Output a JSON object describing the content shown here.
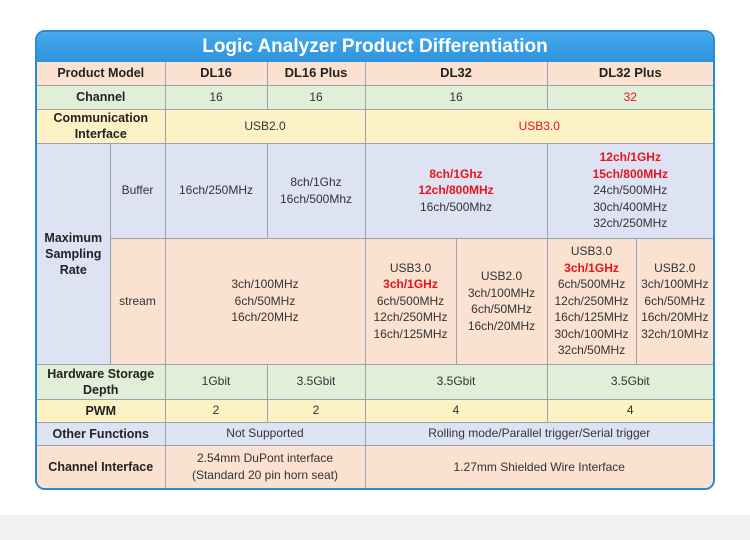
{
  "title": "Logic Analyzer Product Differentiation",
  "header": {
    "label": "Product Model",
    "models": [
      "DL16",
      "DL16 Plus",
      "DL32",
      "DL32 Plus"
    ]
  },
  "channel": {
    "label": "Channel",
    "values": [
      16,
      16,
      16,
      32
    ]
  },
  "communication": {
    "label": "Communication Interface",
    "values": [
      "USB2.0",
      "USB3.0"
    ]
  },
  "sampling": {
    "label": "Maximum Sampling Rate",
    "buffer": {
      "label": "Buffer",
      "cells": [
        [
          "16ch/250MHz"
        ],
        [
          "8ch/1Ghz",
          "16ch/500Mhz"
        ],
        [
          "8ch/1Ghz",
          "12ch/800MHz",
          "16ch/500Mhz"
        ],
        [
          "12ch/1GHz",
          "15ch/800MHz",
          "24ch/500MHz",
          "30ch/400MHz",
          "32ch/250MHz"
        ]
      ]
    },
    "stream": {
      "label": "stream",
      "cells": [
        [
          "3ch/100MHz",
          "6ch/50MHz",
          "16ch/20MHz"
        ],
        [
          "USB3.0",
          "3ch/1GHz",
          "6ch/500MHz",
          "12ch/250MHz",
          "16ch/125MHz"
        ],
        [
          "USB2.0",
          "3ch/100MHz",
          "6ch/50MHz",
          "16ch/20MHz"
        ],
        [
          "USB3.0",
          "3ch/1GHz",
          "6ch/500MHz",
          "12ch/250MHz",
          "16ch/125MHz",
          "30ch/100MHz",
          "32ch/50MHz"
        ],
        [
          "USB2.0",
          "3ch/100MHz",
          "6ch/50MHz",
          "16ch/20MHz",
          "32ch/10MHz"
        ]
      ]
    }
  },
  "storage": {
    "label": "Hardware Storage Depth",
    "values": [
      "1Gbit",
      "3.5Gbit",
      "3.5Gbit",
      "3.5Gbit"
    ]
  },
  "pwm": {
    "label": "PWM",
    "values": [
      2,
      2,
      4,
      4
    ]
  },
  "other": {
    "label": "Other Functions",
    "values": [
      "Not Supported",
      "Rolling mode/Parallel trigger/Serial trigger"
    ]
  },
  "interface": {
    "label": "Channel Interface",
    "values": [
      [
        "2.54mm DuPont interface",
        "(Standard 20 pin horn seat)"
      ],
      [
        "1.27mm Shielded Wire Interface"
      ]
    ]
  }
}
